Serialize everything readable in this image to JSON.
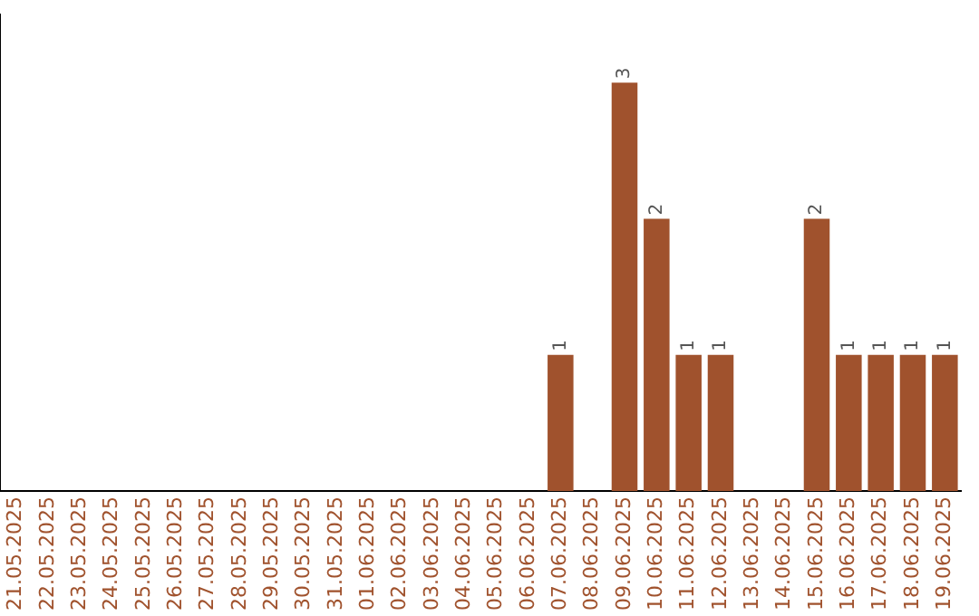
{
  "chart_data": {
    "type": "bar",
    "categories": [
      "21.05.2025",
      "22.05.2025",
      "23.05.2025",
      "24.05.2025",
      "25.05.2025",
      "26.05.2025",
      "27.05.2025",
      "28.05.2025",
      "29.05.2025",
      "30.05.2025",
      "31.05.2025",
      "01.06.2025",
      "02.06.2025",
      "03.06.2025",
      "04.06.2025",
      "05.06.2025",
      "06.06.2025",
      "07.06.2025",
      "08.06.2025",
      "09.06.2025",
      "10.06.2025",
      "11.06.2025",
      "12.06.2025",
      "13.06.2025",
      "14.06.2025",
      "15.06.2025",
      "16.06.2025",
      "17.06.2025",
      "18.06.2025",
      "19.06.2025"
    ],
    "values": [
      null,
      null,
      null,
      null,
      null,
      null,
      null,
      null,
      null,
      null,
      null,
      null,
      null,
      null,
      null,
      null,
      null,
      1,
      null,
      3,
      2,
      1,
      1,
      null,
      null,
      2,
      1,
      1,
      1,
      1
    ],
    "data_labels": true,
    "color": "#a0522d",
    "tick_labels": "x",
    "grid": false,
    "legend": false
  }
}
